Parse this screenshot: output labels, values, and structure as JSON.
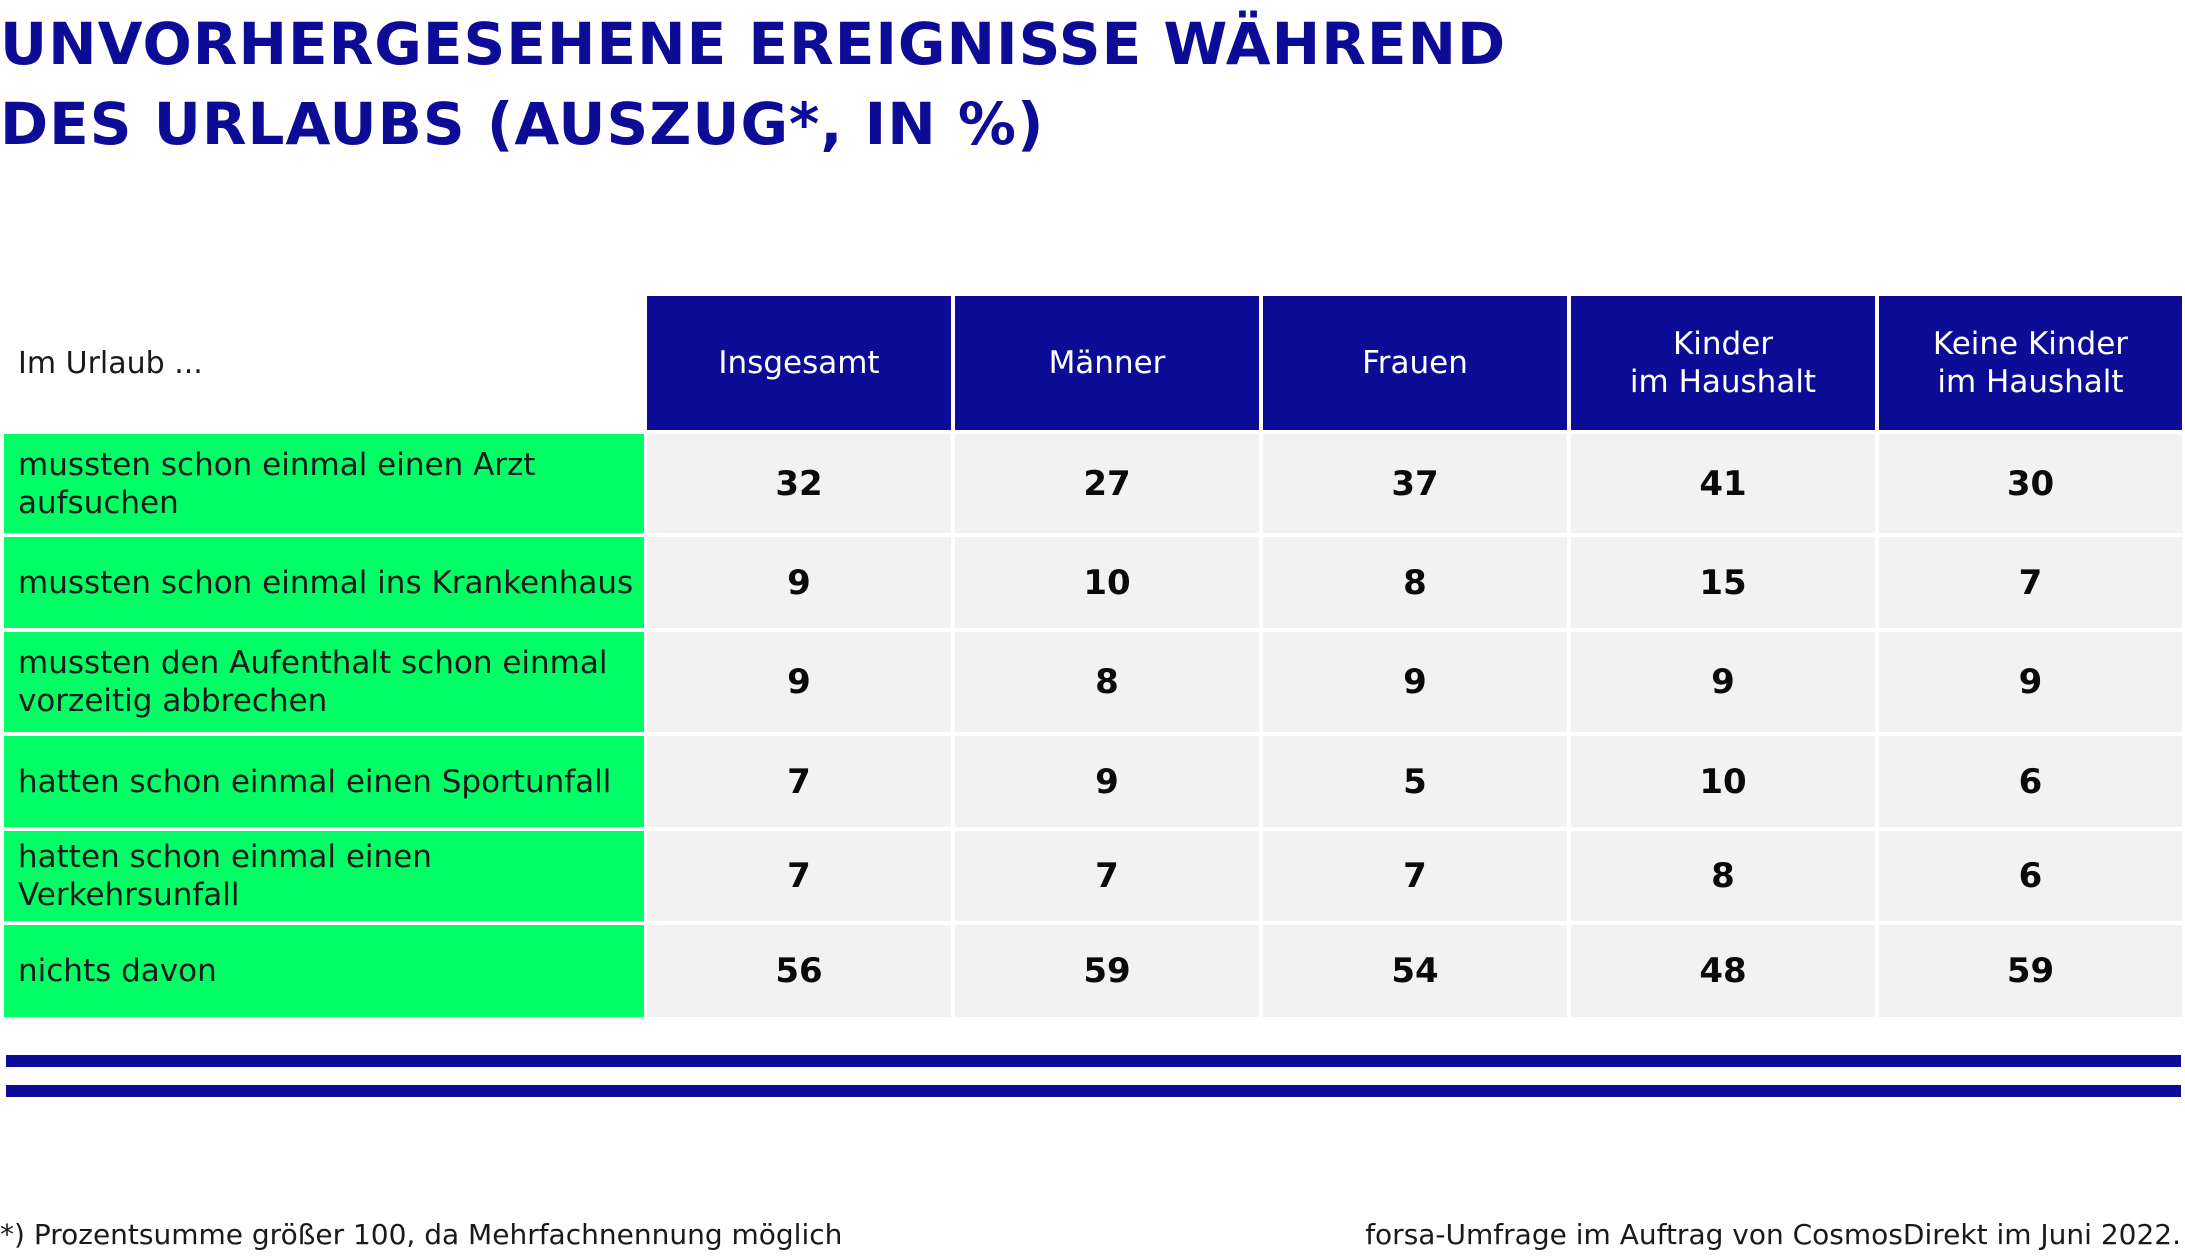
{
  "title": {
    "line1": "UNVORHERGESEHENE EREIGNISSE WÄHREND",
    "line2": "DES URLAUBS (AUSZUG*, IN %)"
  },
  "colors": {
    "header_bg": "#0c0c96",
    "row_label_bg": "#00ff66",
    "value_bg": "#f2f2f2",
    "title": "#0c0c96"
  },
  "chart_data": {
    "type": "table",
    "title": "UNVORHERGESEHENE EREIGNISSE WÄHREND DES URLAUBS (AUSZUG*, IN %)",
    "row_header": "Im Urlaub ...",
    "columns": [
      "Insgesamt",
      "Männer",
      "Frauen",
      "Kinder\nim Haushalt",
      "Keine Kinder\nim Haushalt"
    ],
    "rows": [
      {
        "label": "mussten schon einmal einen Arzt aufsuchen",
        "values": [
          "32",
          "27",
          "37",
          "41",
          "30"
        ]
      },
      {
        "label": "mussten schon einmal ins Krankenhaus",
        "values": [
          "9",
          "10",
          "8",
          "15",
          "7"
        ]
      },
      {
        "label": "mussten den Aufenthalt schon einmal vorzeitig abbrechen",
        "values": [
          "9",
          "8",
          "9",
          "9",
          "9"
        ]
      },
      {
        "label": "hatten schon einmal einen Sportunfall",
        "values": [
          "7",
          "9",
          "5",
          "10",
          "6"
        ]
      },
      {
        "label": "hatten schon einmal einen Verkehrsunfall",
        "values": [
          "7",
          "7",
          "7",
          "8",
          "6"
        ]
      },
      {
        "label": "nichts davon",
        "values": [
          "56",
          "59",
          "54",
          "48",
          "59"
        ]
      }
    ]
  },
  "footer": {
    "note": "*) Prozentsumme größer 100, da Mehrfachnennung möglich",
    "source": "forsa-Umfrage im Auftrag von CosmosDirekt im Juni 2022."
  }
}
